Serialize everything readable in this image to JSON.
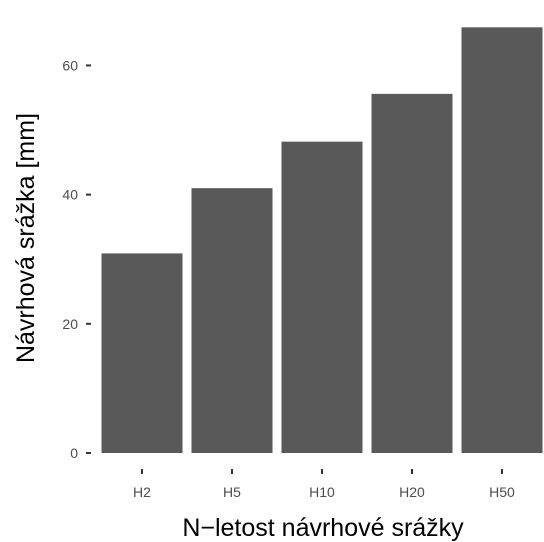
{
  "chart_data": {
    "type": "bar",
    "categories": [
      "H2",
      "H5",
      "H10",
      "H20",
      "H50"
    ],
    "values": [
      30.9,
      41.0,
      48.2,
      55.6,
      65.9
    ],
    "title": "",
    "xlabel": "N−letost návrhové srážky",
    "ylabel": "Návrhová srážka [mm]",
    "ylim": [
      0,
      69.2
    ],
    "yticks": [
      0,
      20,
      40,
      60
    ],
    "grid": false,
    "colors": {
      "bar": "#595959",
      "tick": "#333333",
      "tick_label": "#4d4d4d"
    }
  }
}
